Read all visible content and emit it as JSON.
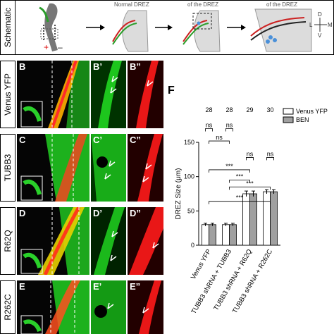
{
  "schematic": {
    "row_label": "Schematic",
    "captions": [
      "Normal DREZ",
      "of the DREZ",
      "of the DREZ"
    ],
    "plus": "+",
    "minus": "–",
    "compass": {
      "d": "D",
      "v": "V",
      "l": "L",
      "m": "M"
    }
  },
  "rows": [
    {
      "row_label": "Venus YFP",
      "panels": [
        "B",
        "B’",
        "B”"
      ]
    },
    {
      "row_label": "TUBB3",
      "panels": [
        "C",
        "C’",
        "C”"
      ]
    },
    {
      "row_label": "R62Q",
      "panels": [
        "D",
        "D’",
        "D”"
      ]
    },
    {
      "row_label": "R262C",
      "panels": [
        "E",
        "E’",
        "E”"
      ]
    }
  ],
  "figure_panel_letter": "F",
  "colors": {
    "green": "#22e022",
    "red": "#ff1a1a",
    "yellow": "#e8d000",
    "venus_bar": "#ffffff",
    "ben_bar": "#a0a0a0"
  },
  "chart_data": {
    "type": "bar",
    "categories": [
      "Venus YFP",
      "TUBB3 shRNA + TUBB3",
      "TUBB3 shRNA + R62Q",
      "TUBB3 shRNA + R262C"
    ],
    "series": [
      {
        "name": "Venus YFP",
        "values": [
          30,
          30,
          75,
          78
        ],
        "errors": [
          2,
          2,
          4,
          3
        ]
      },
      {
        "name": "BEN",
        "values": [
          30,
          30,
          75,
          78
        ],
        "errors": [
          2,
          2,
          4,
          3
        ]
      }
    ],
    "n_labels": [
      "28",
      "28",
      "29",
      "30"
    ],
    "ylabel": "DREZ Size (μm)",
    "ylim": [
      0,
      150
    ],
    "yticks": [
      0,
      50,
      100,
      150
    ],
    "legend_position": "top-right",
    "significance": [
      {
        "label": "ns",
        "pair": [
          0,
          0
        ]
      },
      {
        "label": "ns",
        "pair": [
          1,
          1
        ]
      },
      {
        "label": "ns",
        "pair": [
          2,
          2
        ]
      },
      {
        "label": "ns",
        "pair": [
          3,
          3
        ]
      },
      {
        "label": "ns",
        "pair": [
          0,
          1
        ]
      },
      {
        "label": "***",
        "pair": [
          1,
          2
        ]
      },
      {
        "label": "***",
        "pair": [
          1,
          3
        ]
      },
      {
        "label": "***",
        "pair": [
          0,
          2
        ]
      },
      {
        "label": "***",
        "pair": [
          0,
          3
        ]
      }
    ]
  }
}
